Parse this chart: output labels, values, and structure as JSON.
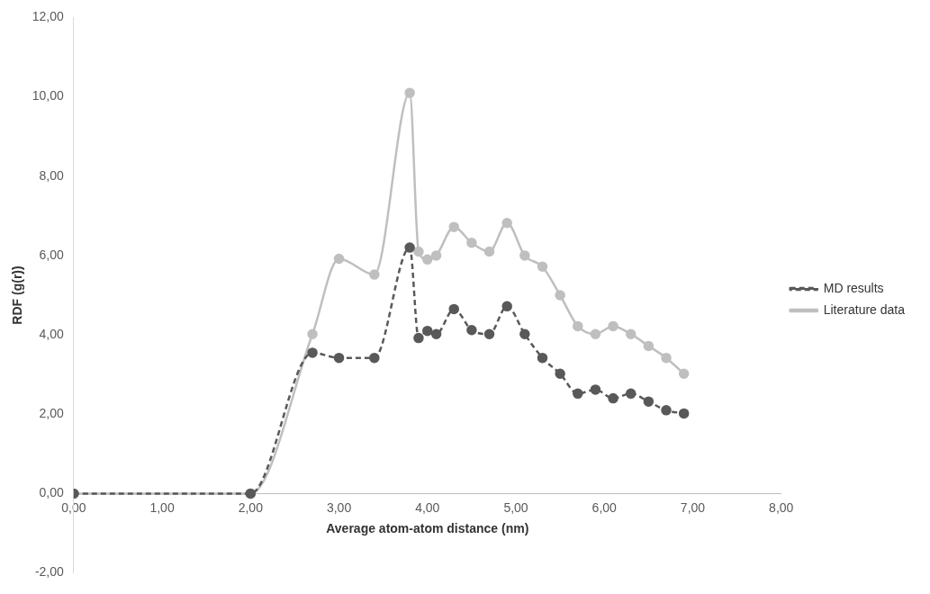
{
  "chart_data": {
    "type": "line",
    "xlabel": "Average atom-atom distance (nm)",
    "ylabel": "RDF (g(r))",
    "xlim": [
      0,
      8
    ],
    "xticks": [
      {
        "value": 0,
        "label": "0,00"
      },
      {
        "value": 1,
        "label": "1,00"
      },
      {
        "value": 2,
        "label": "2,00"
      },
      {
        "value": 3,
        "label": "3,00"
      },
      {
        "value": 4,
        "label": "4,00"
      },
      {
        "value": 5,
        "label": "5,00"
      },
      {
        "value": 6,
        "label": "6,00"
      },
      {
        "value": 7,
        "label": "7,00"
      },
      {
        "value": 8,
        "label": "8,00"
      }
    ],
    "ylim": [
      -2,
      12
    ],
    "yticks": [
      {
        "value": -2,
        "label": "-2,00"
      },
      {
        "value": 0,
        "label": "0,00"
      },
      {
        "value": 2,
        "label": "2,00"
      },
      {
        "value": 4,
        "label": "4,00"
      },
      {
        "value": 6,
        "label": "6,00"
      },
      {
        "value": 8,
        "label": "8,00"
      },
      {
        "value": 10,
        "label": "10,00"
      },
      {
        "value": 12,
        "label": "12,00"
      }
    ],
    "x": [
      0,
      2,
      2.7,
      3.0,
      3.4,
      3.8,
      3.9,
      4.0,
      4.1,
      4.3,
      4.5,
      4.7,
      4.9,
      5.1,
      5.3,
      5.5,
      5.7,
      5.9,
      6.1,
      6.3,
      6.5,
      6.7,
      6.9
    ],
    "series": [
      {
        "name": "MD results",
        "color": "#595959",
        "line_style": "dashed",
        "values": [
          0,
          0,
          3.55,
          3.42,
          3.42,
          6.2,
          3.92,
          4.1,
          4.02,
          4.65,
          4.12,
          4.02,
          4.72,
          4.02,
          3.42,
          3.02,
          2.52,
          2.62,
          2.4,
          2.52,
          2.32,
          2.1,
          2.02
        ]
      },
      {
        "name": "Literature data",
        "color": "#bfbfbf",
        "line_style": "solid",
        "values": [
          0,
          0,
          4.02,
          5.92,
          5.52,
          10.1,
          6.1,
          5.9,
          6.0,
          6.72,
          6.32,
          6.1,
          6.82,
          6.0,
          5.72,
          5.0,
          4.22,
          4.02,
          4.22,
          4.02,
          3.72,
          3.42,
          3.02
        ]
      }
    ],
    "marker": "circle",
    "grid": false,
    "legend": "right"
  }
}
